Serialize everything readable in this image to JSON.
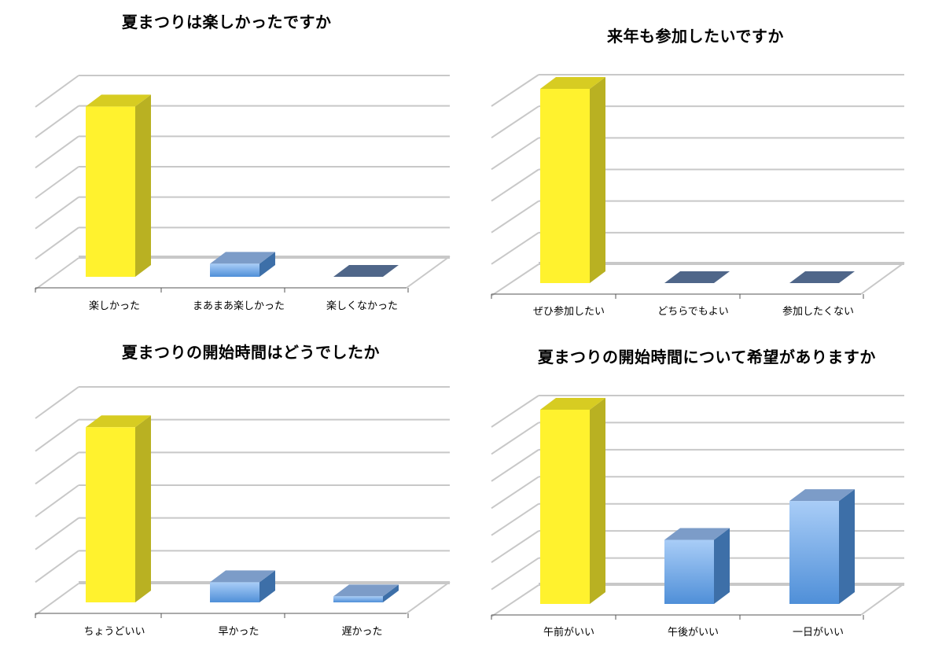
{
  "chart_data": [
    {
      "type": "bar",
      "title": "夏まつりは楽しかったですか",
      "categories": [
        "楽しかった",
        "まあまあ楽しかった",
        "楽しくなかった"
      ],
      "values": [
        91,
        7,
        0
      ],
      "ylim": [
        0,
        100
      ],
      "grid": true,
      "highlight_index": 0
    },
    {
      "type": "bar",
      "title": "来年も参加したいですか",
      "categories": [
        "ぜひ参加したい",
        "どちらでもよい",
        "参加したくない"
      ],
      "values": [
        100,
        0,
        0
      ],
      "ylim": [
        0,
        100
      ],
      "grid": true,
      "highlight_index": 0
    },
    {
      "type": "bar",
      "title": "夏まつりの開始時間はどうでしたか",
      "categories": [
        "ちょうどいい",
        "早かった",
        "遅かった"
      ],
      "values": [
        87,
        10,
        3
      ],
      "ylim": [
        0,
        100
      ],
      "grid": true,
      "highlight_index": 0
    },
    {
      "type": "bar",
      "title": "夏まつりの開始時間について希望がありますか",
      "categories": [
        "午前がいい",
        "午後がいい",
        "一日がいい"
      ],
      "values": [
        100,
        33,
        53
      ],
      "ylim": [
        0,
        100
      ],
      "grid": true,
      "highlight_index": 0
    }
  ],
  "colors": {
    "highlight_front": "#fff22e",
    "highlight_side": "#b9b122",
    "highlight_top": "#d7cc22",
    "bar_front_top": "#a9cdf7",
    "bar_front_bottom": "#4f8fd8",
    "bar_side": "#3d6fa8",
    "bar_top": "#7c9cc8",
    "zero_bar": "#4f6689",
    "grid": "#c8c8c8",
    "axis": "#555555"
  }
}
